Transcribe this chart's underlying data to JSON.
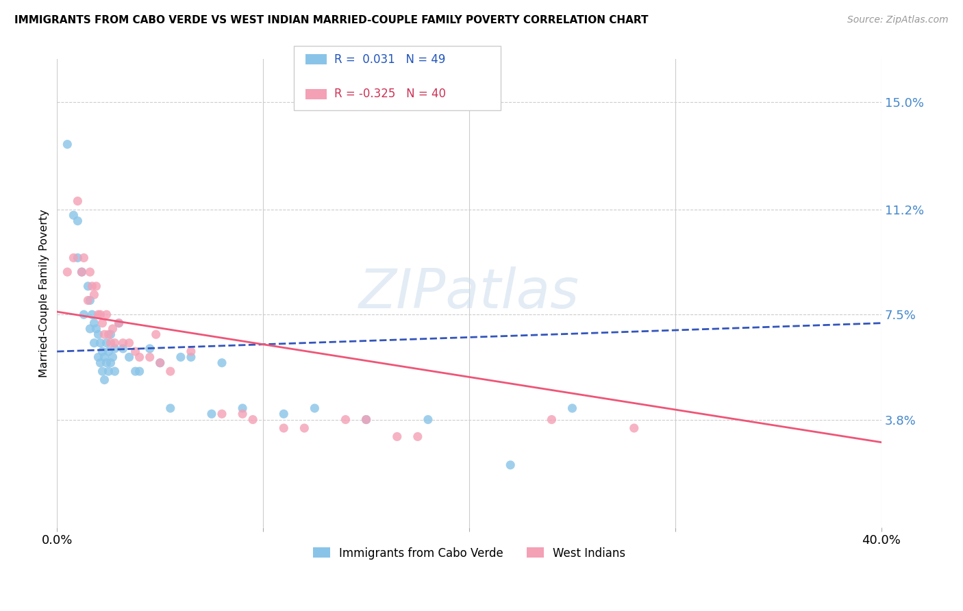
{
  "title": "IMMIGRANTS FROM CABO VERDE VS WEST INDIAN MARRIED-COUPLE FAMILY POVERTY CORRELATION CHART",
  "source": "Source: ZipAtlas.com",
  "ylabel": "Married-Couple Family Poverty",
  "xlim": [
    0.0,
    0.4
  ],
  "ylim": [
    0.0,
    0.165
  ],
  "ytick_labels_right": [
    "3.8%",
    "7.5%",
    "11.2%",
    "15.0%"
  ],
  "ytick_vals_right": [
    0.038,
    0.075,
    0.112,
    0.15
  ],
  "color_blue": "#89C4E8",
  "color_pink": "#F4A0B5",
  "blue_line_color": "#3355BB",
  "pink_line_color": "#EE5577",
  "R_blue": 0.031,
  "N_blue": 49,
  "R_pink": -0.325,
  "N_pink": 40,
  "watermark": "ZIPatlas",
  "blue_trend_x0": 0.0,
  "blue_trend_y0": 0.062,
  "blue_trend_x1": 0.4,
  "blue_trend_y1": 0.072,
  "pink_trend_x0": 0.0,
  "pink_trend_y0": 0.076,
  "pink_trend_x1": 0.4,
  "pink_trend_y1": 0.03,
  "cabo_verde_x": [
    0.005,
    0.008,
    0.01,
    0.01,
    0.012,
    0.013,
    0.015,
    0.016,
    0.016,
    0.017,
    0.018,
    0.018,
    0.019,
    0.02,
    0.02,
    0.021,
    0.021,
    0.022,
    0.022,
    0.023,
    0.023,
    0.024,
    0.024,
    0.025,
    0.025,
    0.026,
    0.026,
    0.027,
    0.028,
    0.028,
    0.03,
    0.032,
    0.035,
    0.038,
    0.04,
    0.045,
    0.05,
    0.055,
    0.06,
    0.065,
    0.075,
    0.08,
    0.09,
    0.11,
    0.125,
    0.15,
    0.18,
    0.22,
    0.25
  ],
  "cabo_verde_y": [
    0.135,
    0.11,
    0.108,
    0.095,
    0.09,
    0.075,
    0.085,
    0.08,
    0.07,
    0.075,
    0.072,
    0.065,
    0.07,
    0.068,
    0.06,
    0.065,
    0.058,
    0.062,
    0.055,
    0.06,
    0.052,
    0.058,
    0.065,
    0.062,
    0.055,
    0.068,
    0.058,
    0.06,
    0.063,
    0.055,
    0.072,
    0.063,
    0.06,
    0.055,
    0.055,
    0.063,
    0.058,
    0.042,
    0.06,
    0.06,
    0.04,
    0.058,
    0.042,
    0.04,
    0.042,
    0.038,
    0.038,
    0.022,
    0.042
  ],
  "west_indian_x": [
    0.005,
    0.008,
    0.01,
    0.012,
    0.013,
    0.015,
    0.016,
    0.017,
    0.018,
    0.019,
    0.02,
    0.021,
    0.022,
    0.023,
    0.024,
    0.025,
    0.026,
    0.027,
    0.028,
    0.03,
    0.032,
    0.035,
    0.038,
    0.04,
    0.045,
    0.048,
    0.05,
    0.055,
    0.065,
    0.08,
    0.09,
    0.095,
    0.11,
    0.12,
    0.14,
    0.15,
    0.165,
    0.175,
    0.24,
    0.28
  ],
  "west_indian_y": [
    0.09,
    0.095,
    0.115,
    0.09,
    0.095,
    0.08,
    0.09,
    0.085,
    0.082,
    0.085,
    0.075,
    0.075,
    0.072,
    0.068,
    0.075,
    0.068,
    0.065,
    0.07,
    0.065,
    0.072,
    0.065,
    0.065,
    0.062,
    0.06,
    0.06,
    0.068,
    0.058,
    0.055,
    0.062,
    0.04,
    0.04,
    0.038,
    0.035,
    0.035,
    0.038,
    0.038,
    0.032,
    0.032,
    0.038,
    0.035
  ]
}
